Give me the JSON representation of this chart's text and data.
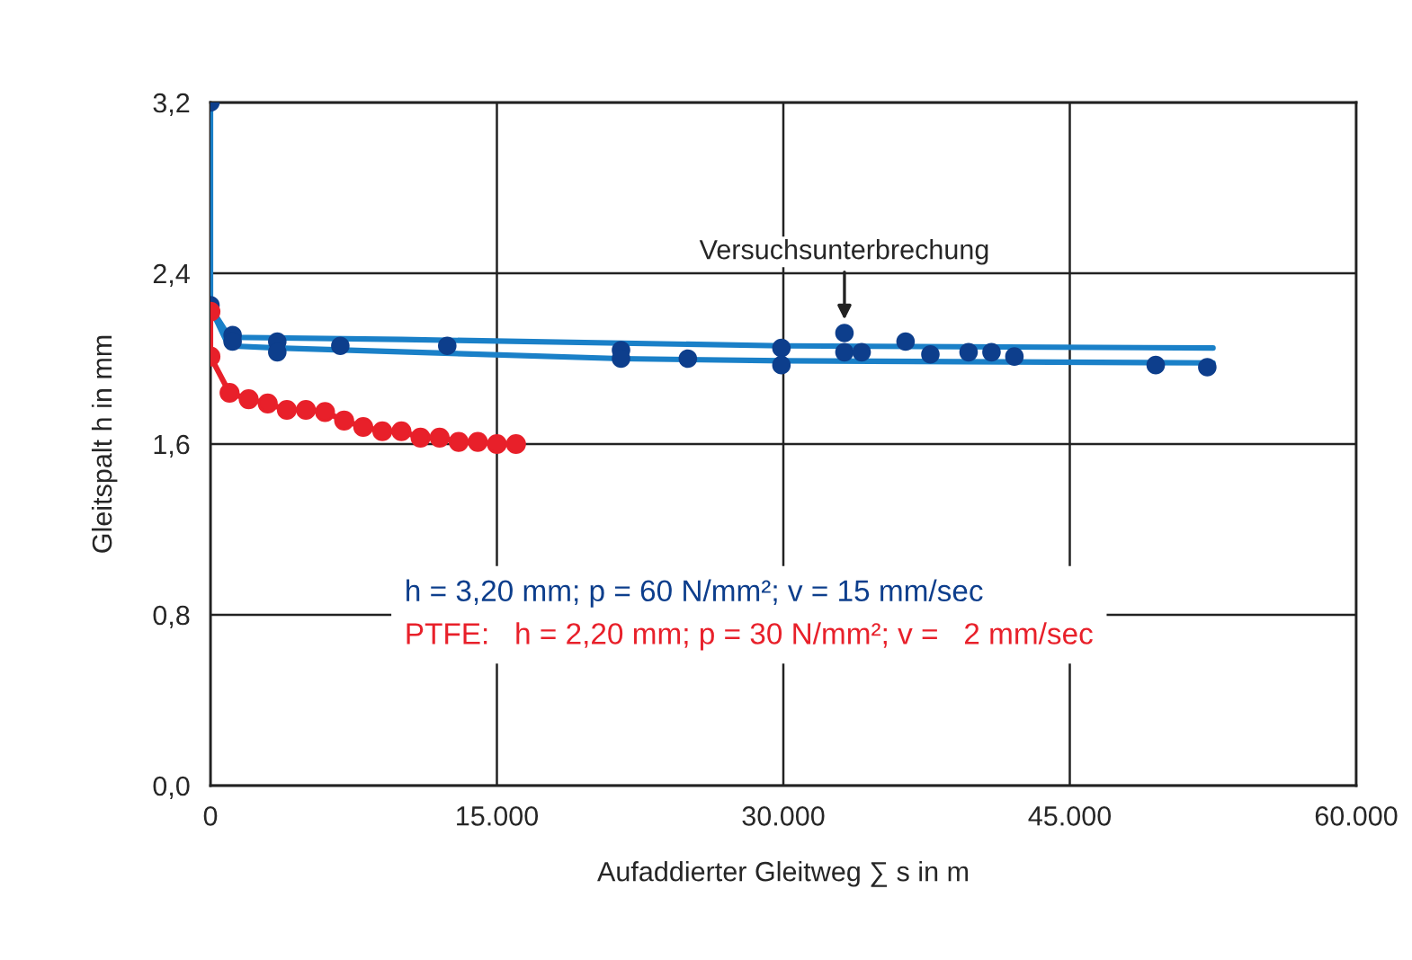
{
  "chart_data": {
    "type": "line",
    "xlabel": "Aufaddierter Gleitweg ∑ s in m",
    "ylabel": "Gleitspalt h in mm",
    "xlim": [
      0,
      60000
    ],
    "ylim": [
      0,
      3.2
    ],
    "xticks": [
      {
        "value": 0,
        "label": "0"
      },
      {
        "value": 15000,
        "label": "15.000"
      },
      {
        "value": 30000,
        "label": "30.000"
      },
      {
        "value": 45000,
        "label": "45.000"
      },
      {
        "value": 60000,
        "label": "60.000"
      }
    ],
    "yticks": [
      {
        "value": 0,
        "label": "0,0"
      },
      {
        "value": 0.8,
        "label": "0,8"
      },
      {
        "value": 1.6,
        "label": "1,6"
      },
      {
        "value": 2.4,
        "label": "2,4"
      },
      {
        "value": 3.2,
        "label": "3,2"
      }
    ],
    "grid": true,
    "legend": "center",
    "series": [
      {
        "color": "#1a80c8",
        "marker": "none",
        "x": [
          0,
          0,
          1000,
          10000,
          30000,
          52500
        ],
        "values": [
          3.2,
          2.24,
          2.1,
          2.09,
          2.06,
          2.05
        ]
      },
      {
        "color": "#1a80c8",
        "marker": "none",
        "x": [
          0,
          0,
          950,
          3500,
          21500,
          30000,
          52500
        ],
        "values": [
          3.2,
          2.24,
          2.06,
          2.05,
          2.0,
          1.99,
          1.98
        ]
      },
      {
        "type": "scatter",
        "name": "h = 3,20 mm; p = 60 N/mm²; v = 15 mm/sec",
        "color": "#0d3e8c",
        "marker": "circle",
        "x": [
          0,
          0,
          1160,
          1160,
          3500,
          3500,
          6800,
          12400,
          21500,
          21500,
          25000,
          29900,
          29900,
          33200,
          33200,
          34100,
          36400,
          37700,
          39700,
          40900,
          42100,
          49500,
          52200
        ],
        "values": [
          3.2,
          2.25,
          2.11,
          2.08,
          2.08,
          2.03,
          2.06,
          2.06,
          2.04,
          2.0,
          2.0,
          2.05,
          1.97,
          2.12,
          2.03,
          2.03,
          2.08,
          2.02,
          2.03,
          2.03,
          2.01,
          1.97,
          1.96
        ]
      },
      {
        "name": "PTFE:   h = 2,20 mm; p = 30 N/mm²; v =   2 mm/sec",
        "color": "#e8202a",
        "marker": "circle",
        "x": [
          0,
          0,
          1000,
          2000,
          3000,
          4000,
          5000,
          6000,
          7000,
          8000,
          9000,
          10000,
          11000,
          12000,
          13000,
          14000,
          15000,
          16000
        ],
        "values": [
          2.22,
          2.01,
          1.84,
          1.81,
          1.79,
          1.76,
          1.76,
          1.75,
          1.71,
          1.68,
          1.66,
          1.66,
          1.63,
          1.63,
          1.61,
          1.61,
          1.6,
          1.6
        ]
      }
    ],
    "annotations": [
      {
        "text": "Versuchsunterbrechung",
        "x": 33200,
        "y": 2.16
      }
    ]
  }
}
